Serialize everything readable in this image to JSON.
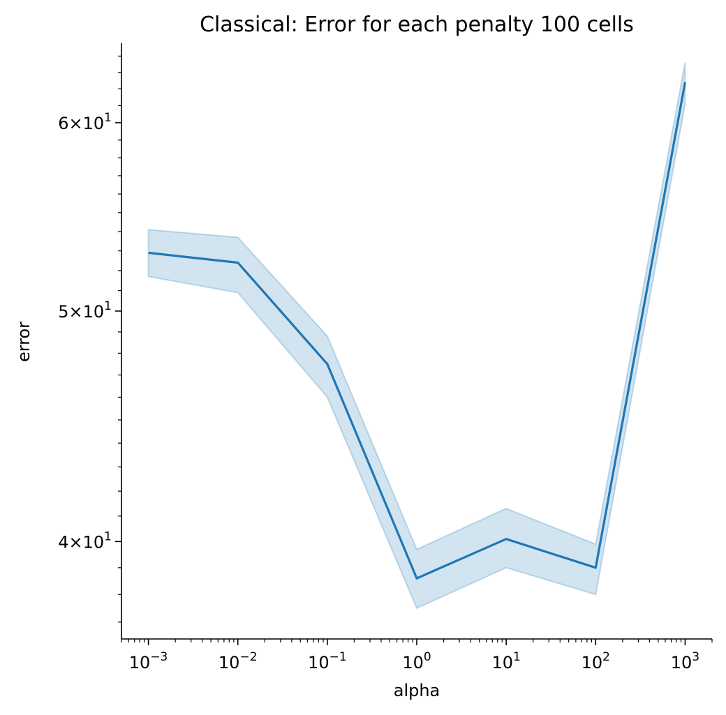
{
  "chart_data": {
    "type": "line",
    "title": "Classical: Error for each penalty 100 cells",
    "xlabel": "alpha",
    "ylabel": "error",
    "x_scale": "log",
    "y_scale": "log",
    "xlim": [
      0.0005,
      2000
    ],
    "ylim": [
      36.4,
      64.8
    ],
    "x_ticks": [
      {
        "value": 0.001,
        "base": "10",
        "exp": "−3"
      },
      {
        "value": 0.01,
        "base": "10",
        "exp": "−2"
      },
      {
        "value": 0.1,
        "base": "10",
        "exp": "−1"
      },
      {
        "value": 1,
        "base": "10",
        "exp": "0"
      },
      {
        "value": 10,
        "base": "10",
        "exp": "1"
      },
      {
        "value": 100,
        "base": "10",
        "exp": "2"
      },
      {
        "value": 1000,
        "base": "10",
        "exp": "3"
      }
    ],
    "y_ticks": [
      {
        "value": 40,
        "mantissa": "4",
        "times": "×",
        "base": "10",
        "exp": "1"
      },
      {
        "value": 50,
        "mantissa": "5",
        "times": "×",
        "base": "10",
        "exp": "1"
      },
      {
        "value": 60,
        "mantissa": "6",
        "times": "×",
        "base": "10",
        "exp": "1"
      }
    ],
    "series": [
      {
        "x": [
          0.001,
          0.01,
          0.1,
          1,
          10,
          100,
          1000
        ],
        "y": [
          52.9,
          52.4,
          47.5,
          38.6,
          40.1,
          39.0,
          62.4
        ],
        "ci_lower": [
          51.7,
          50.9,
          46.0,
          37.5,
          39.0,
          38.0,
          61.1
        ],
        "ci_upper": [
          54.1,
          53.7,
          48.8,
          39.7,
          41.3,
          39.9,
          63.6
        ],
        "color": "#1f77b4"
      }
    ],
    "grid": false,
    "legend": "none"
  }
}
